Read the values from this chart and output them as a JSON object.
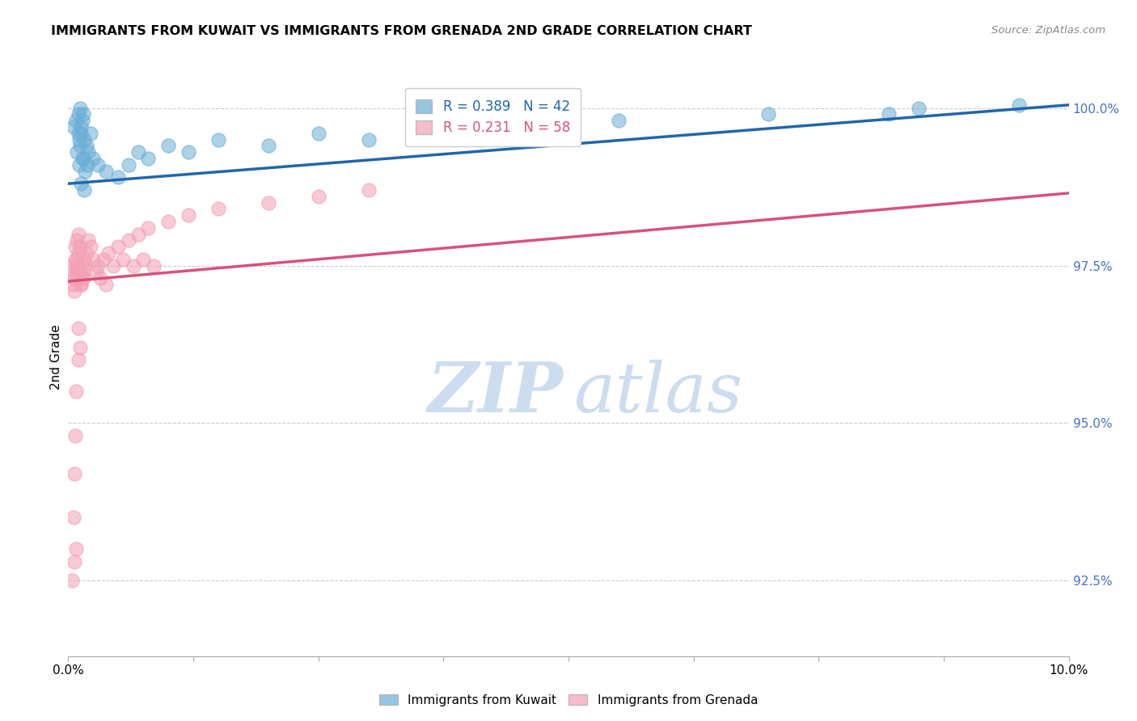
{
  "title": "IMMIGRANTS FROM KUWAIT VS IMMIGRANTS FROM GRENADA 2ND GRADE CORRELATION CHART",
  "source": "Source: ZipAtlas.com",
  "ylabel": "2nd Grade",
  "ytick_values": [
    92.5,
    95.0,
    97.5,
    100.0
  ],
  "xlim": [
    0.0,
    10.0
  ],
  "ylim": [
    91.3,
    100.8
  ],
  "kuwait_color": "#6aaed6",
  "grenada_color": "#f4a0b5",
  "kuwait_line_color": "#2166ac",
  "grenada_line_color": "#d6537a",
  "kuwait_line_x0": 0.0,
  "kuwait_line_y0": 98.8,
  "kuwait_line_x1": 10.0,
  "kuwait_line_y1": 100.05,
  "grenada_line_x0": 0.0,
  "grenada_line_y0": 97.25,
  "grenada_line_x1": 10.0,
  "grenada_line_y1": 98.65,
  "kuwait_x": [
    0.05,
    0.08,
    0.1,
    0.12,
    0.14,
    0.1,
    0.13,
    0.11,
    0.15,
    0.13,
    0.09,
    0.12,
    0.14,
    0.11,
    0.16,
    0.18,
    0.2,
    0.22,
    0.15,
    0.17,
    0.19,
    0.13,
    0.16,
    0.25,
    0.3,
    0.38,
    0.5,
    0.6,
    0.7,
    0.8,
    1.0,
    1.2,
    1.5,
    2.0,
    2.5,
    3.0,
    4.0,
    5.5,
    7.0,
    8.5,
    8.2,
    9.5
  ],
  "kuwait_y": [
    99.7,
    99.8,
    99.9,
    100.0,
    99.8,
    99.6,
    99.7,
    99.5,
    99.9,
    99.6,
    99.3,
    99.4,
    99.2,
    99.1,
    99.5,
    99.4,
    99.3,
    99.6,
    99.2,
    99.0,
    99.1,
    98.8,
    98.7,
    99.2,
    99.1,
    99.0,
    98.9,
    99.1,
    99.3,
    99.2,
    99.4,
    99.3,
    99.5,
    99.4,
    99.6,
    99.5,
    99.7,
    99.8,
    99.9,
    100.0,
    99.9,
    100.05
  ],
  "grenada_x": [
    0.04,
    0.05,
    0.06,
    0.07,
    0.08,
    0.05,
    0.07,
    0.09,
    0.1,
    0.08,
    0.06,
    0.09,
    0.11,
    0.13,
    0.12,
    0.14,
    0.15,
    0.1,
    0.12,
    0.16,
    0.18,
    0.2,
    0.17,
    0.22,
    0.25,
    0.13,
    0.15,
    0.3,
    0.35,
    0.4,
    0.5,
    0.6,
    0.7,
    0.8,
    1.0,
    1.2,
    1.5,
    2.0,
    2.5,
    3.0,
    0.45,
    0.55,
    0.65,
    0.75,
    0.85,
    0.28,
    0.32,
    0.38,
    0.1,
    0.08,
    0.07,
    0.06,
    0.05,
    0.04,
    0.06,
    0.08,
    0.1,
    0.12
  ],
  "grenada_y": [
    97.5,
    97.3,
    97.1,
    97.6,
    97.4,
    97.2,
    97.8,
    97.9,
    97.7,
    97.5,
    97.3,
    97.6,
    97.4,
    97.2,
    97.5,
    97.3,
    97.4,
    98.0,
    97.8,
    97.6,
    97.7,
    97.9,
    97.5,
    97.8,
    97.6,
    97.2,
    97.3,
    97.5,
    97.6,
    97.7,
    97.8,
    97.9,
    98.0,
    98.1,
    98.2,
    98.3,
    98.4,
    98.5,
    98.6,
    98.7,
    97.5,
    97.6,
    97.5,
    97.6,
    97.5,
    97.4,
    97.3,
    97.2,
    96.0,
    95.5,
    94.8,
    94.2,
    93.5,
    92.5,
    92.8,
    93.0,
    96.5,
    96.2
  ]
}
